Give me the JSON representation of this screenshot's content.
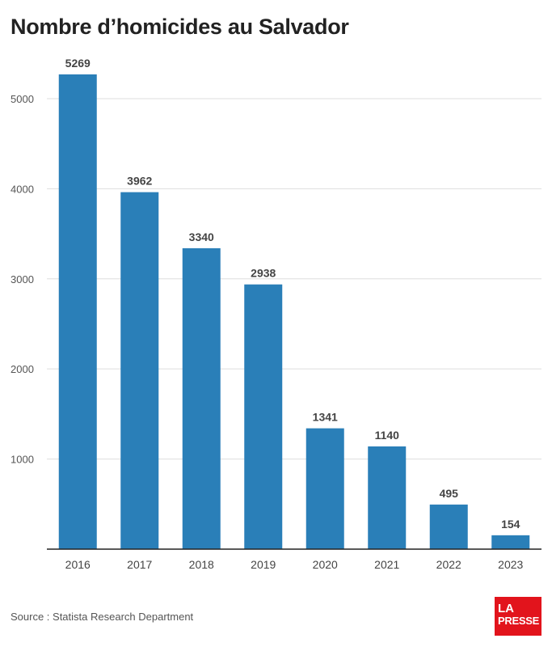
{
  "header": {
    "title": "Nombre d’homicides au Salvador"
  },
  "chart_data": {
    "type": "bar",
    "categories": [
      "2016",
      "2017",
      "2018",
      "2019",
      "2020",
      "2021",
      "2022",
      "2023"
    ],
    "values": [
      5269,
      3962,
      3340,
      2938,
      1341,
      1140,
      495,
      154
    ],
    "ylim": [
      0,
      5269
    ],
    "yticks": [
      1000,
      2000,
      3000,
      4000,
      5000
    ],
    "grid": true,
    "bar_color": "#2a7fb8",
    "data_labels": true
  },
  "footer": {
    "source": "Source : Statista Research Department",
    "logo_line1": "LA",
    "logo_line2": "PRESSE",
    "logo_color": "#e2141c"
  }
}
